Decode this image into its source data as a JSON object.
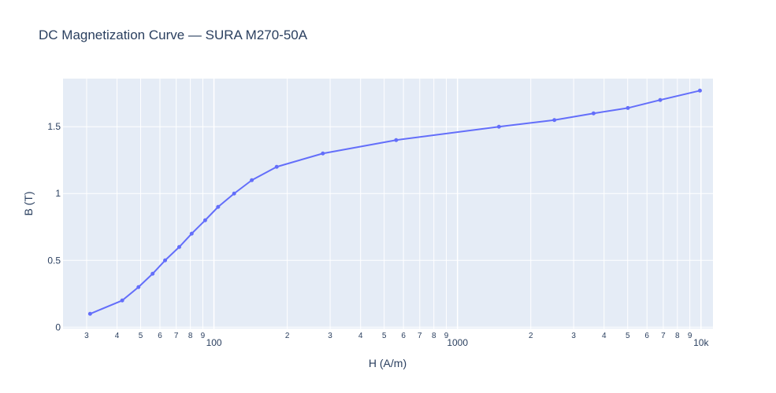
{
  "chart_data": {
    "type": "line",
    "title": "DC Magnetization Curve — SURA M270-50A",
    "xlabel": "H (A/m)",
    "ylabel": "B (T)",
    "x_scale": "log",
    "xlim": [
      24,
      11200
    ],
    "ylim": [
      -0.01,
      1.86
    ],
    "grid": true,
    "legend": "none",
    "colors": {
      "series": "#636efa",
      "plot_bg": "#e5ecf6",
      "grid": "#ffffff",
      "text": "#2a3f5f"
    },
    "x_ticks": [
      {
        "value": 30,
        "label": "3"
      },
      {
        "value": 40,
        "label": "4"
      },
      {
        "value": 50,
        "label": "5"
      },
      {
        "value": 60,
        "label": "6"
      },
      {
        "value": 70,
        "label": "7"
      },
      {
        "value": 80,
        "label": "8"
      },
      {
        "value": 90,
        "label": "9"
      },
      {
        "value": 100,
        "label": "100"
      },
      {
        "value": 200,
        "label": "2"
      },
      {
        "value": 300,
        "label": "3"
      },
      {
        "value": 400,
        "label": "4"
      },
      {
        "value": 500,
        "label": "5"
      },
      {
        "value": 600,
        "label": "6"
      },
      {
        "value": 700,
        "label": "7"
      },
      {
        "value": 800,
        "label": "8"
      },
      {
        "value": 900,
        "label": "9"
      },
      {
        "value": 1000,
        "label": "1000"
      },
      {
        "value": 2000,
        "label": "2"
      },
      {
        "value": 3000,
        "label": "3"
      },
      {
        "value": 4000,
        "label": "4"
      },
      {
        "value": 5000,
        "label": "5"
      },
      {
        "value": 6000,
        "label": "6"
      },
      {
        "value": 7000,
        "label": "7"
      },
      {
        "value": 8000,
        "label": "8"
      },
      {
        "value": 9000,
        "label": "9"
      },
      {
        "value": 10000,
        "label": "10k"
      }
    ],
    "y_ticks": [
      {
        "value": 0,
        "label": "0"
      },
      {
        "value": 0.5,
        "label": "0.5"
      },
      {
        "value": 1,
        "label": "1"
      },
      {
        "value": 1.5,
        "label": "1.5"
      }
    ],
    "series": [
      {
        "x": [
          31,
          42,
          49,
          56,
          63,
          72,
          81,
          92,
          104,
          121,
          143,
          181,
          280,
          560,
          1480,
          2500,
          3620,
          5010,
          6800,
          9900
        ],
        "y": [
          0.1,
          0.2,
          0.3,
          0.4,
          0.5,
          0.6,
          0.7,
          0.8,
          0.9,
          1.0,
          1.1,
          1.2,
          1.3,
          1.4,
          1.5,
          1.55,
          1.6,
          1.64,
          1.7,
          1.77
        ]
      }
    ]
  }
}
